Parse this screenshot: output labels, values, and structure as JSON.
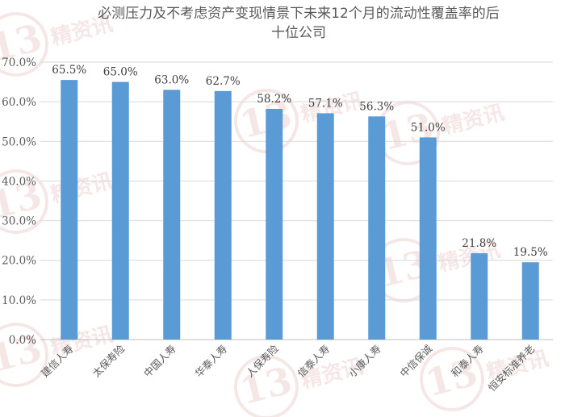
{
  "chart_data": {
    "type": "bar",
    "title": "必测压力及不考虑资产变现情景下未来12个月的流动性覆盖率的后十位公司",
    "title_lines": [
      "必测压力及不考虑资产变现情景下未来12个月的流动性覆盖率的后",
      "十位公司"
    ],
    "categories": [
      "建信人寿",
      "太保寿险",
      "中国人寿",
      "华泰人寿",
      "人保寿险",
      "信泰人寿",
      "小康人寿",
      "中信保诚",
      "和泰人寿",
      "恒安标准养老"
    ],
    "values": [
      65.5,
      65.0,
      63.0,
      62.7,
      58.2,
      57.1,
      56.3,
      51.0,
      21.8,
      19.5
    ],
    "value_labels": [
      "65.5%",
      "65.0%",
      "63.0%",
      "62.7%",
      "58.2%",
      "57.1%",
      "56.3%",
      "51.0%",
      "21.8%",
      "19.5%"
    ],
    "xlabel": "",
    "ylabel": "",
    "ylim": [
      0,
      70
    ],
    "yticks": [
      0,
      10,
      20,
      30,
      40,
      50,
      60,
      70
    ],
    "ytick_labels": [
      "0.0%",
      "10.0%",
      "20.0%",
      "30.0%",
      "40.0%",
      "50.0%",
      "60.0%",
      "70.0%"
    ],
    "grid": true,
    "legend": "none",
    "bar_color": "#5B9BD5",
    "grid_color": "#D9D9D9",
    "text_color": "#595959"
  },
  "watermark": {
    "number": "13",
    "text": "精资讯",
    "color": "#C0504D"
  }
}
